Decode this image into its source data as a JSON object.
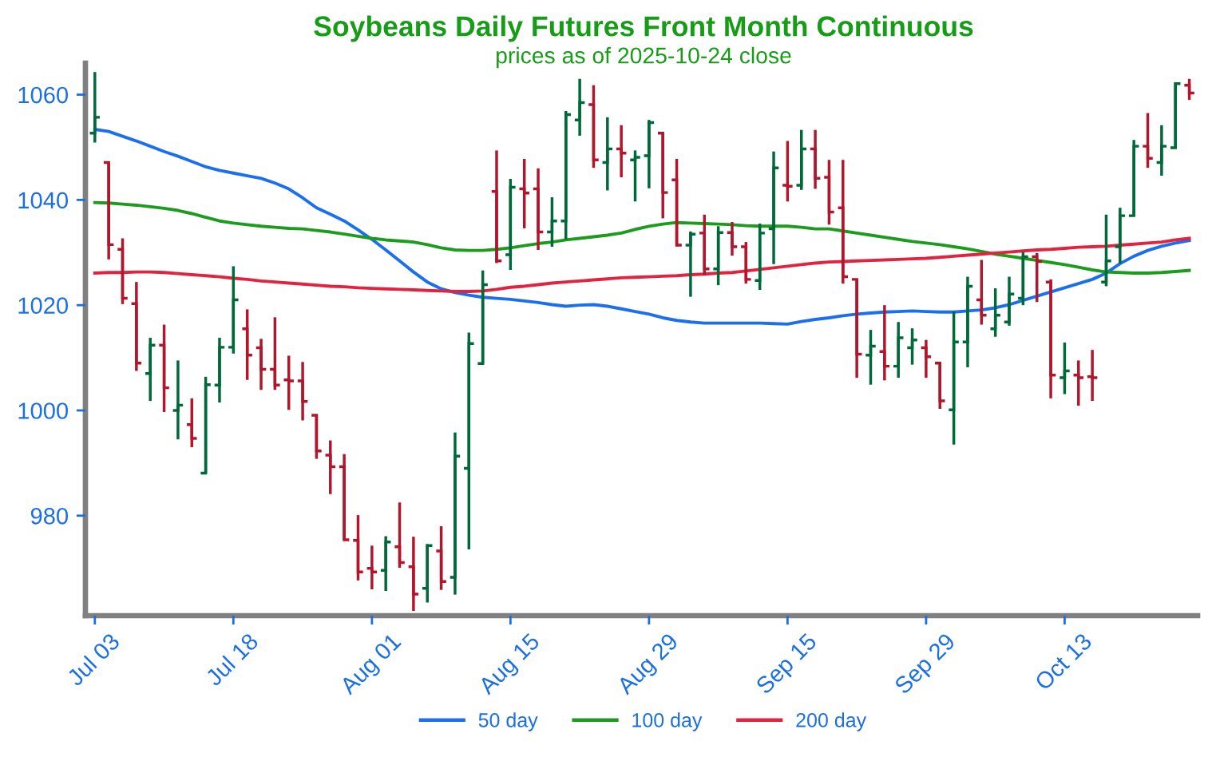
{
  "chart_data": {
    "type": "candlestick",
    "title": "Soybeans Daily Futures Front Month Continuous",
    "subtitle": "prices as of 2025-10-24 close",
    "categories": [
      "Jul 03",
      null,
      null,
      null,
      null,
      null,
      null,
      null,
      null,
      null,
      "Jul 18",
      null,
      null,
      null,
      null,
      null,
      null,
      null,
      null,
      null,
      "Aug 01",
      null,
      null,
      null,
      null,
      null,
      null,
      null,
      null,
      null,
      "Aug 15",
      null,
      null,
      null,
      null,
      null,
      null,
      null,
      null,
      null,
      "Aug 29",
      null,
      null,
      null,
      null,
      null,
      null,
      null,
      null,
      null,
      "Sep 15",
      null,
      null,
      null,
      null,
      null,
      null,
      null,
      null,
      null,
      "Sep 29",
      null,
      null,
      null,
      null,
      null,
      null,
      null,
      null,
      null,
      "Oct 13",
      null,
      null,
      null,
      null,
      null,
      null,
      null,
      null,
      null
    ],
    "ohlc": [
      [
        1052.7,
        1064.3,
        1050.9,
        1055.7
      ],
      [
        1047.1,
        1047.1,
        1028.7,
        1031.5
      ],
      [
        1030.6,
        1032.7,
        1020.2,
        1021.3
      ],
      [
        1020.3,
        1024.4,
        1007.5,
        1009.0
      ],
      [
        1007.0,
        1013.8,
        1001.8,
        1012.4
      ],
      [
        1012.4,
        1016.3,
        999.7,
        1004.3
      ],
      [
        1000.0,
        1009.5,
        994.5,
        1001.0
      ],
      [
        997.3,
        1002.3,
        993.0,
        994.7
      ],
      [
        988.1,
        1006.4,
        988.1,
        1004.9
      ],
      [
        1004.8,
        1013.8,
        1001.5,
        1012.0
      ],
      [
        1012.0,
        1027.4,
        1010.8,
        1021.0
      ],
      [
        1015.5,
        1019.2,
        1005.8,
        1010.5
      ],
      [
        1011.9,
        1013.6,
        1003.9,
        1007.8
      ],
      [
        1007.8,
        1017.7,
        1003.9,
        1004.8
      ],
      [
        1005.8,
        1010.4,
        1000.1,
        1005.6
      ],
      [
        1005.6,
        1009.2,
        998.1,
        1001.7
      ],
      [
        999.1,
        999.2,
        990.8,
        992.3
      ],
      [
        991.5,
        994.3,
        984.1,
        989.3
      ],
      [
        989.3,
        991.7,
        975.3,
        975.4
      ],
      [
        975.3,
        980.1,
        967.7,
        969.3
      ],
      [
        970.0,
        974.3,
        966.0,
        969.3
      ],
      [
        969.6,
        976.1,
        965.7,
        975.0
      ],
      [
        974.1,
        982.5,
        970.1,
        971.1
      ],
      [
        970.3,
        976.0,
        961.9,
        965.1
      ],
      [
        966.2,
        974.6,
        963.5,
        974.3
      ],
      [
        973.3,
        978.0,
        965.9,
        967.5
      ],
      [
        968.3,
        995.8,
        965.0,
        991.3
      ],
      [
        989.0,
        1014.8,
        973.6,
        1012.7
      ],
      [
        1008.9,
        1026.6,
        1008.9,
        1023.9
      ],
      [
        1041.6,
        1049.4,
        1028.0,
        1028.4
      ],
      [
        1029.6,
        1044.0,
        1026.7,
        1042.4
      ],
      [
        1042.1,
        1047.8,
        1034.6,
        1041.3
      ],
      [
        1042.1,
        1046.0,
        1030.5,
        1033.9
      ],
      [
        1033.9,
        1040.5,
        1031.1,
        1036.0
      ],
      [
        1036.0,
        1056.9,
        1032.5,
        1056.2
      ],
      [
        1055.2,
        1063.0,
        1052.2,
        1058.5
      ],
      [
        1058.1,
        1061.8,
        1046.1,
        1047.6
      ],
      [
        1047.1,
        1055.7,
        1041.8,
        1049.7
      ],
      [
        1049.7,
        1054.2,
        1044.3,
        1048.9
      ],
      [
        1047.6,
        1049.4,
        1039.7,
        1048.1
      ],
      [
        1048.4,
        1055.2,
        1042.2,
        1054.7
      ],
      [
        1052.7,
        1052.9,
        1036.5,
        1041.4
      ],
      [
        1043.8,
        1047.8,
        1031.2,
        1031.4
      ],
      [
        1031.4,
        1034.0,
        1021.6,
        1033.5
      ],
      [
        1033.7,
        1037.2,
        1025.7,
        1026.9
      ],
      [
        1026.9,
        1035.0,
        1023.8,
        1033.8
      ],
      [
        1033.8,
        1035.8,
        1029.4,
        1031.1
      ],
      [
        1031.1,
        1032.0,
        1024.1,
        1024.9
      ],
      [
        1024.7,
        1035.5,
        1022.9,
        1033.7
      ],
      [
        1034.5,
        1049.2,
        1027.8,
        1046.1
      ],
      [
        1042.8,
        1051.2,
        1039.7,
        1042.6
      ],
      [
        1042.8,
        1053.3,
        1041.9,
        1049.7
      ],
      [
        1049.7,
        1053.3,
        1042.1,
        1044.1
      ],
      [
        1044.3,
        1047.6,
        1035.3,
        1037.7
      ],
      [
        1038.5,
        1047.6,
        1024.1,
        1025.4
      ],
      [
        1024.9,
        1024.9,
        1006.2,
        1010.7
      ],
      [
        1010.5,
        1015.3,
        1004.9,
        1012.2
      ],
      [
        1011.2,
        1020.0,
        1005.7,
        1008.4
      ],
      [
        1008.4,
        1016.8,
        1006.2,
        1013.8
      ],
      [
        1011.9,
        1015.6,
        1008.7,
        1013.4
      ],
      [
        1011.9,
        1013.4,
        1006.2,
        1010.2
      ],
      [
        1009.0,
        1009.0,
        1000.3,
        1001.8
      ],
      [
        1000.1,
        1018.8,
        993.5,
        1013.0
      ],
      [
        1013.0,
        1025.4,
        1008.2,
        1023.6
      ],
      [
        1021.0,
        1028.6,
        1016.3,
        1018.1
      ],
      [
        1015.5,
        1023.2,
        1014.0,
        1018.1
      ],
      [
        1016.8,
        1025.4,
        1016.1,
        1022.1
      ],
      [
        1021.3,
        1030.1,
        1020.0,
        1029.2
      ],
      [
        1029.2,
        1029.9,
        1020.6,
        1028.3
      ],
      [
        1024.4,
        1024.9,
        1002.3,
        1006.7
      ],
      [
        1006.2,
        1012.9,
        1003.1,
        1007.5
      ],
      [
        1006.7,
        1009.5,
        1000.9,
        1006.2
      ],
      [
        1006.4,
        1011.5,
        1001.8,
        1006.2
      ],
      [
        1024.4,
        1037.2,
        1023.6,
        1028.4
      ],
      [
        1031.1,
        1038.5,
        1027.9,
        1037.0
      ],
      [
        1037.0,
        1051.4,
        1037.0,
        1050.2
      ],
      [
        1050.2,
        1056.5,
        1046.1,
        1047.9
      ],
      [
        1047.1,
        1054.2,
        1044.6,
        1050.2
      ],
      [
        1049.9,
        1062.3,
        1049.9,
        1062.1
      ],
      [
        1061.8,
        1063.0,
        1059.0,
        1060.3
      ]
    ],
    "colors": [
      "#00693a",
      "#b0162c",
      "#b0162c",
      "#b0162c",
      "#00693a",
      "#b0162c",
      "#00693a",
      "#b0162c",
      "#00693a",
      "#00693a",
      "#00693a",
      "#b0162c",
      "#b0162c",
      "#b0162c",
      "#b0162c",
      "#b0162c",
      "#b0162c",
      "#b0162c",
      "#b0162c",
      "#b0162c",
      "#b0162c",
      "#00693a",
      "#b0162c",
      "#b0162c",
      "#00693a",
      "#b0162c",
      "#00693a",
      "#00693a",
      "#00693a",
      "#b0162c",
      "#00693a",
      "#b0162c",
      "#b0162c",
      "#00693a",
      "#00693a",
      "#00693a",
      "#b0162c",
      "#00693a",
      "#b0162c",
      "#00693a",
      "#00693a",
      "#b0162c",
      "#b0162c",
      "#00693a",
      "#b0162c",
      "#00693a",
      "#b0162c",
      "#b0162c",
      "#00693a",
      "#00693a",
      "#b0162c",
      "#00693a",
      "#b0162c",
      "#b0162c",
      "#b0162c",
      "#b0162c",
      "#00693a",
      "#b0162c",
      "#00693a",
      "#00693a",
      "#b0162c",
      "#b0162c",
      "#00693a",
      "#00693a",
      "#b0162c",
      "#00693a",
      "#00693a",
      "#00693a",
      "#b0162c",
      "#b0162c",
      "#00693a",
      "#b0162c",
      "#b0162c",
      "#00693a",
      "#00693a",
      "#00693a",
      "#b0162c",
      "#00693a",
      "#00693a",
      "#b0162c"
    ],
    "series": [
      {
        "name": "50 day",
        "type": "line",
        "color": "#1a6ff0",
        "values": [
          1053.4,
          1053.0,
          1052.1,
          1051.2,
          1050.2,
          1049.2,
          1048.3,
          1047.3,
          1046.3,
          1045.6,
          1045.1,
          1044.6,
          1044.1,
          1043.2,
          1042.1,
          1040.4,
          1038.5,
          1037.3,
          1036.0,
          1034.3,
          1032.5,
          1030.5,
          1028.4,
          1026.3,
          1024.4,
          1023.1,
          1022.4,
          1021.9,
          1021.5,
          1021.3,
          1021.1,
          1020.8,
          1020.5,
          1020.1,
          1019.8,
          1020.0,
          1020.1,
          1019.8,
          1019.3,
          1018.8,
          1018.3,
          1017.6,
          1017.1,
          1016.8,
          1016.6,
          1016.6,
          1016.6,
          1016.6,
          1016.6,
          1016.5,
          1016.4,
          1016.9,
          1017.3,
          1017.6,
          1018.0,
          1018.3,
          1018.5,
          1018.7,
          1018.8,
          1018.9,
          1018.8,
          1018.7,
          1018.7,
          1018.9,
          1019.1,
          1019.5,
          1020.1,
          1020.9,
          1021.7,
          1022.5,
          1023.3,
          1024.1,
          1024.9,
          1026.1,
          1027.9,
          1029.3,
          1030.4,
          1031.2,
          1031.8,
          1032.3
        ]
      },
      {
        "name": "100 day",
        "type": "line",
        "color": "#1c9c1c",
        "values": [
          1039.5,
          1039.4,
          1039.2,
          1039.0,
          1038.7,
          1038.4,
          1038.0,
          1037.4,
          1036.7,
          1036.0,
          1035.6,
          1035.3,
          1035.0,
          1034.8,
          1034.6,
          1034.5,
          1034.2,
          1033.9,
          1033.5,
          1033.1,
          1032.7,
          1032.4,
          1032.2,
          1032.0,
          1031.5,
          1030.9,
          1030.5,
          1030.4,
          1030.4,
          1030.6,
          1030.9,
          1031.3,
          1031.7,
          1032.0,
          1032.4,
          1032.7,
          1033.0,
          1033.3,
          1033.7,
          1034.4,
          1035.0,
          1035.4,
          1035.7,
          1035.6,
          1035.5,
          1035.4,
          1035.3,
          1035.1,
          1035.0,
          1035.0,
          1035.0,
          1034.8,
          1034.5,
          1034.5,
          1034.1,
          1033.7,
          1033.3,
          1032.9,
          1032.5,
          1032.1,
          1031.8,
          1031.5,
          1031.1,
          1030.7,
          1030.2,
          1029.7,
          1029.3,
          1028.9,
          1028.5,
          1028.1,
          1027.7,
          1027.2,
          1026.7,
          1026.3,
          1026.2,
          1026.1,
          1026.1,
          1026.2,
          1026.4,
          1026.6
        ]
      },
      {
        "name": "200 day",
        "type": "line",
        "color": "#e2223e",
        "values": [
          1026.1,
          1026.2,
          1026.2,
          1026.3,
          1026.3,
          1026.2,
          1026.0,
          1025.8,
          1025.6,
          1025.4,
          1025.1,
          1024.9,
          1024.6,
          1024.4,
          1024.2,
          1024.0,
          1023.8,
          1023.6,
          1023.5,
          1023.3,
          1023.2,
          1023.1,
          1023.0,
          1022.9,
          1022.8,
          1022.7,
          1022.6,
          1022.6,
          1022.7,
          1023.0,
          1023.4,
          1023.6,
          1023.9,
          1024.2,
          1024.4,
          1024.6,
          1024.8,
          1025.0,
          1025.2,
          1025.3,
          1025.4,
          1025.5,
          1025.6,
          1025.8,
          1025.9,
          1026.1,
          1026.2,
          1026.5,
          1026.8,
          1027.1,
          1027.4,
          1027.7,
          1028.0,
          1028.2,
          1028.3,
          1028.4,
          1028.5,
          1028.6,
          1028.7,
          1028.8,
          1028.9,
          1029.1,
          1029.3,
          1029.5,
          1029.7,
          1029.9,
          1030.1,
          1030.3,
          1030.5,
          1030.6,
          1030.8,
          1031.0,
          1031.1,
          1031.2,
          1031.4,
          1031.6,
          1031.8,
          1032.0,
          1032.4,
          1032.7
        ]
      }
    ],
    "ylim": [
      961,
      1066
    ],
    "yticks": [
      980,
      1000,
      1020,
      1040,
      1060
    ],
    "legend": "bottom"
  }
}
